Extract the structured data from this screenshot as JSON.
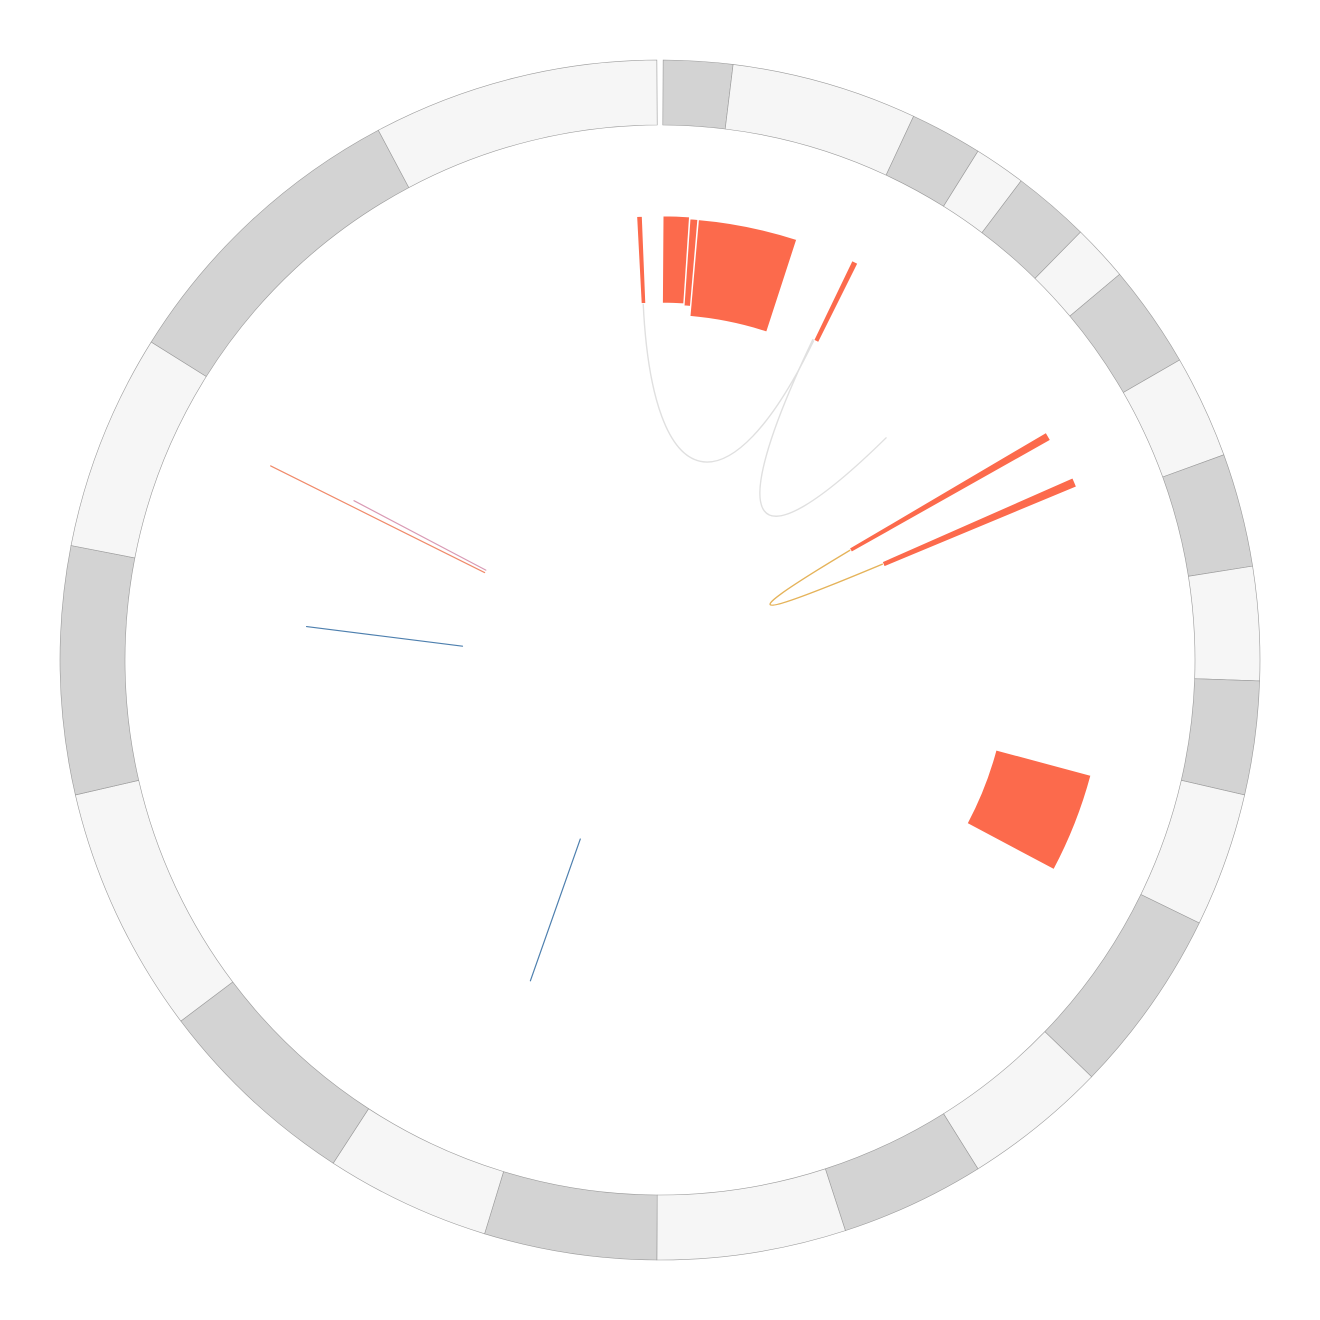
{
  "diagram": {
    "type": "circos",
    "ring_segments": [
      {
        "start": 0.3,
        "end": 7.0,
        "shade": "dark"
      },
      {
        "start": 7.0,
        "end": 25.0,
        "shade": "light"
      },
      {
        "start": 25.0,
        "end": 32.0,
        "shade": "dark"
      },
      {
        "start": 32.0,
        "end": 37.0,
        "shade": "light"
      },
      {
        "start": 37.0,
        "end": 44.5,
        "shade": "dark"
      },
      {
        "start": 44.5,
        "end": 50.0,
        "shade": "light"
      },
      {
        "start": 50.0,
        "end": 60.0,
        "shade": "dark"
      },
      {
        "start": 60.0,
        "end": 70.0,
        "shade": "light"
      },
      {
        "start": 70.0,
        "end": 81.0,
        "shade": "dark"
      },
      {
        "start": 81.0,
        "end": 92.0,
        "shade": "light"
      },
      {
        "start": 92.0,
        "end": 103.0,
        "shade": "dark"
      },
      {
        "start": 103.0,
        "end": 116.0,
        "shade": "light"
      },
      {
        "start": 116.0,
        "end": 134.0,
        "shade": "dark"
      },
      {
        "start": 134.0,
        "end": 148.0,
        "shade": "light"
      },
      {
        "start": 148.0,
        "end": 162.0,
        "shade": "dark"
      },
      {
        "start": 162.0,
        "end": 180.3,
        "shade": "light"
      },
      {
        "start": 180.3,
        "end": 197.0,
        "shade": "dark"
      },
      {
        "start": 197.0,
        "end": 213.0,
        "shade": "light"
      },
      {
        "start": 213.0,
        "end": 233.0,
        "shade": "dark"
      },
      {
        "start": 233.0,
        "end": 257.0,
        "shade": "light"
      },
      {
        "start": 257.0,
        "end": 281.0,
        "shade": "dark"
      },
      {
        "start": 281.0,
        "end": 302.0,
        "shade": "light"
      },
      {
        "start": 302.0,
        "end": 332.0,
        "shade": "dark"
      },
      {
        "start": 332.0,
        "end": 359.7,
        "shade": "light"
      }
    ],
    "blocks": [
      {
        "start": 357.0,
        "end": 357.7,
        "r_inner": 357,
        "r_outer": 444
      },
      {
        "start": 0.4,
        "end": 3.8,
        "r_inner": 357,
        "r_outer": 444
      },
      {
        "start": 3.9,
        "end": 4.9,
        "r_inner": 355,
        "r_outer": 442
      },
      {
        "start": 5.0,
        "end": 18.0,
        "r_inner": 345,
        "r_outer": 442
      },
      {
        "start": 25.7,
        "end": 26.5,
        "r_inner": 355,
        "r_outer": 443
      },
      {
        "start": 59.5,
        "end": 60.6,
        "r_inner": 220,
        "r_outer": 448
      },
      {
        "start": 66.2,
        "end": 67.4,
        "r_inner": 243,
        "r_outer": 451
      },
      {
        "start": 105.0,
        "end": 118.0,
        "r_inner": 348,
        "r_outer": 446
      }
    ],
    "links": [
      {
        "kind": "curve",
        "color": "#e0e0e0",
        "from_angle": 357.3,
        "from_r": 357,
        "to_angle": 25.7,
        "to_r": 355,
        "bulge": 0.55
      },
      {
        "kind": "curve",
        "color": "#e0e0e0",
        "from_angle": 25.5,
        "from_r": 355,
        "to_angle": 45.5,
        "to_r": 317,
        "bulge": 0.6
      },
      {
        "kind": "curve",
        "color": "#e5b35a",
        "from_angle": 59.8,
        "from_r": 359,
        "to_angle": 66.8,
        "to_r": 368,
        "bulge": 0.88
      },
      {
        "kind": "line",
        "color": "#f08a6a",
        "from_angle": 296.5,
        "from_r": 435,
        "to_angle": 296.5,
        "to_r": 196
      },
      {
        "kind": "line",
        "color": "#d99ab4",
        "from_angle": 297.5,
        "from_r": 345,
        "to_angle": 297.3,
        "to_r": 196
      },
      {
        "kind": "line",
        "color": "#4d7fae",
        "from_angle": 275.4,
        "from_r": 355,
        "to_angle": 274.0,
        "to_r": 198
      },
      {
        "kind": "line",
        "color": "#4d7fae",
        "from_angle": 202.0,
        "from_r": 346,
        "to_angle": 204.0,
        "to_r": 196
      }
    ],
    "colors": {
      "segment_dark": "#d3d3d3",
      "segment_light": "#f6f6f6",
      "segment_stroke": "#9a9a9a",
      "block_fill": "#fc6a4c",
      "background": "#ffffff"
    }
  }
}
